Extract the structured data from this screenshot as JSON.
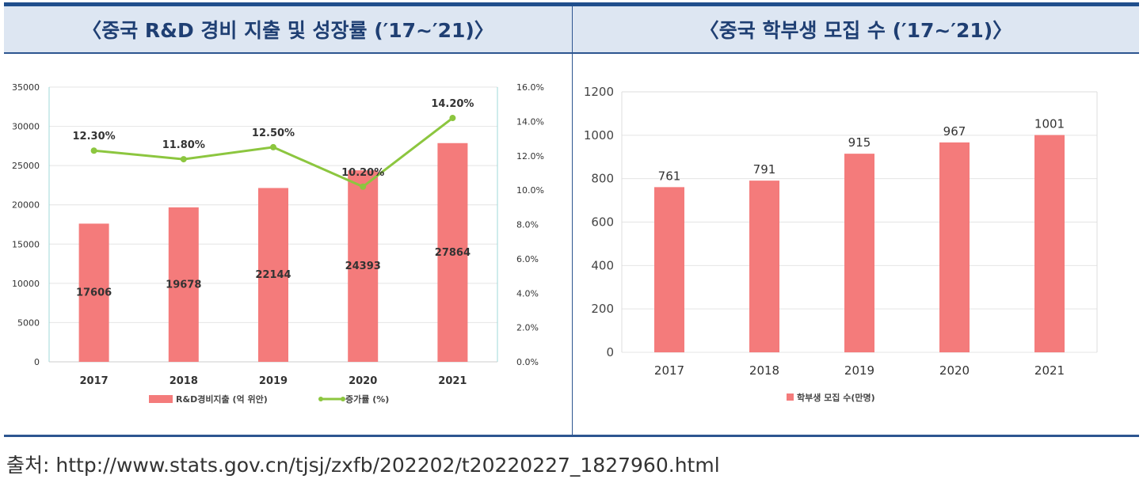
{
  "chart_data": [
    {
      "type": "bar+line",
      "title": "〈중국 R&D 경비 지출 및 성장률 (′17~′21)〉",
      "categories": [
        "2017",
        "2018",
        "2019",
        "2020",
        "2021"
      ],
      "series": [
        {
          "name": "R&D경비지출 (억 위안)",
          "type": "bar",
          "values": [
            17606,
            19678,
            22144,
            24393,
            27864
          ],
          "color": "#f47b7b"
        },
        {
          "name": "증가률 (%)",
          "type": "line",
          "axis": "right",
          "values": [
            12.3,
            11.8,
            12.5,
            10.2,
            14.2
          ],
          "labels": [
            "12.30%",
            "11.80%",
            "12.50%",
            "10.20%",
            "14.20%"
          ],
          "color": "#8cc63f"
        }
      ],
      "ylim": [
        0,
        35000
      ],
      "yticks": [
        "0",
        "5000",
        "10000",
        "15000",
        "20000",
        "25000",
        "30000",
        "35000"
      ],
      "y2lim": [
        0,
        16
      ],
      "y2ticks": [
        "0.0%",
        "2.0%",
        "4.0%",
        "6.0%",
        "8.0%",
        "10.0%",
        "12.0%",
        "14.0%",
        "16.0%"
      ],
      "legend": "bottom",
      "grid": true
    },
    {
      "type": "bar",
      "title": "〈중국 학부생 모집 수 (′17~′21)〉",
      "categories": [
        "2017",
        "2018",
        "2019",
        "2020",
        "2021"
      ],
      "series": [
        {
          "name": "학부생 모집 수(만명)",
          "values": [
            761,
            791,
            915,
            967,
            1001
          ],
          "color": "#f47b7b"
        }
      ],
      "ylim": [
        0,
        1200
      ],
      "yticks": [
        "0",
        "200",
        "400",
        "600",
        "800",
        "1000",
        "1200"
      ],
      "legend": "bottom",
      "grid": true
    }
  ],
  "source": "출처: http://www.stats.gov.cn/tjsj/zxfb/202202/t20220227_1827960.html"
}
